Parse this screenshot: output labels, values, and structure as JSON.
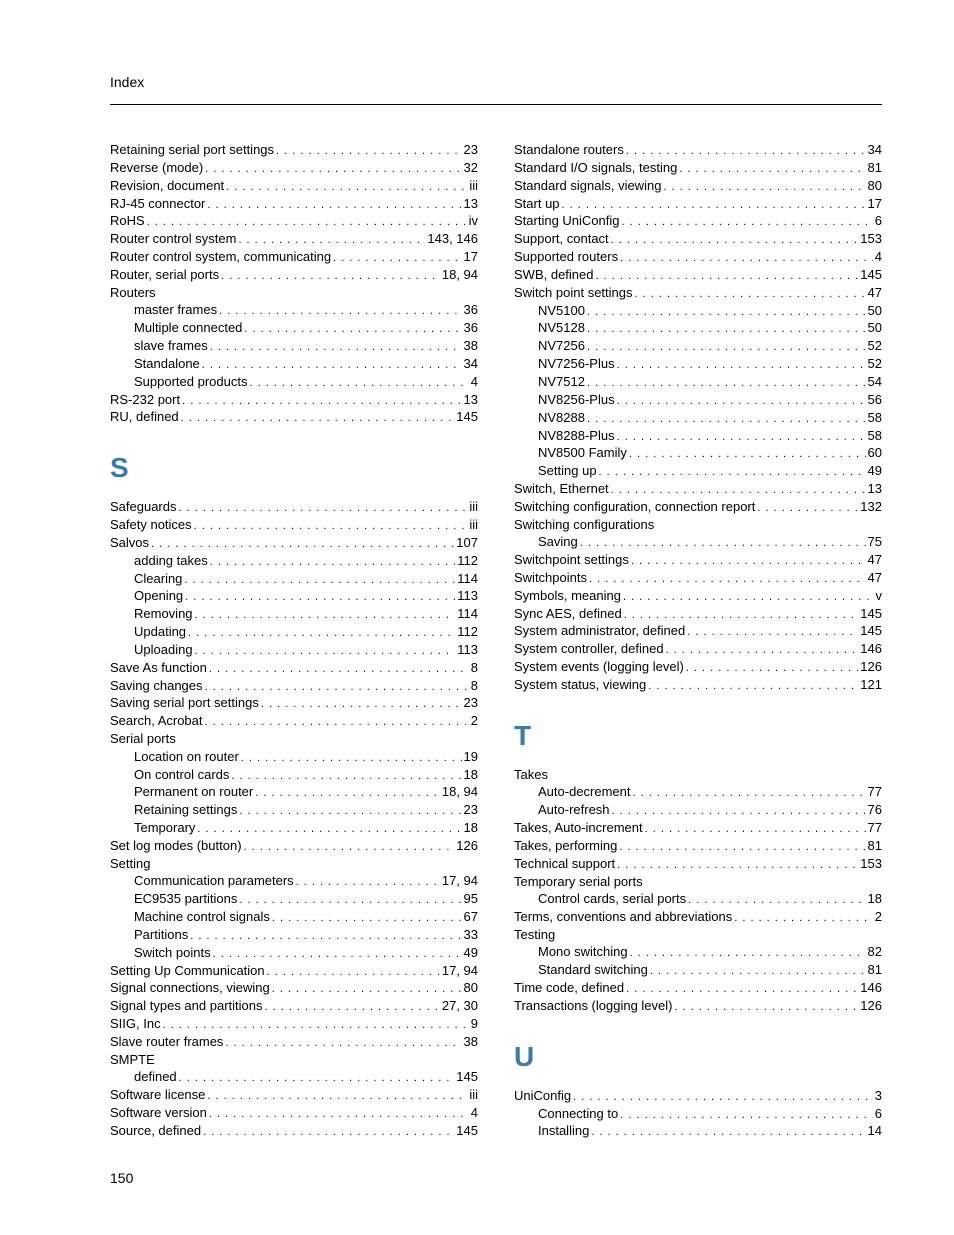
{
  "header": "Index",
  "page_number": "150",
  "colors": {
    "section_letter": "#3a7ca5",
    "text": "#000000",
    "background": "#ffffff",
    "rule": "#000000"
  },
  "typography": {
    "body_fontsize_pt": 10,
    "letter_fontsize_pt": 21,
    "letter_weight": "600"
  },
  "left": [
    {
      "t": "Retaining serial port settings",
      "p": "23"
    },
    {
      "t": "Reverse (mode)",
      "p": "32"
    },
    {
      "t": "Revision, document",
      "p": "iii"
    },
    {
      "t": "RJ-45 connector",
      "p": "13"
    },
    {
      "t": "RoHS",
      "p": "iv"
    },
    {
      "t": "Router control system",
      "p": "143, 146"
    },
    {
      "t": "Router control system, communicating",
      "p": "17"
    },
    {
      "t": "Router, serial ports",
      "p": "18, 94"
    },
    {
      "t": "Routers",
      "group": true
    },
    {
      "t": "master frames",
      "p": "36",
      "sub": true
    },
    {
      "t": "Multiple connected",
      "p": "36",
      "sub": true
    },
    {
      "t": "slave frames",
      "p": "38",
      "sub": true
    },
    {
      "t": "Standalone",
      "p": "34",
      "sub": true
    },
    {
      "t": "Supported products",
      "p": "4",
      "sub": true
    },
    {
      "t": "RS-232 port",
      "p": "13"
    },
    {
      "t": "RU, defined",
      "p": "145"
    },
    {
      "letter": "S"
    },
    {
      "t": "Safeguards",
      "p": "iii"
    },
    {
      "t": "Safety notices",
      "p": "iii"
    },
    {
      "t": "Salvos",
      "p": "107"
    },
    {
      "t": "adding takes",
      "p": "112",
      "sub": true
    },
    {
      "t": "Clearing",
      "p": "114",
      "sub": true
    },
    {
      "t": "Opening",
      "p": "113",
      "sub": true
    },
    {
      "t": "Removing",
      "p": "114",
      "sub": true
    },
    {
      "t": "Updating",
      "p": "112",
      "sub": true
    },
    {
      "t": "Uploading",
      "p": "113",
      "sub": true
    },
    {
      "t": "Save As function",
      "p": "8"
    },
    {
      "t": "Saving changes",
      "p": "8"
    },
    {
      "t": "Saving serial port settings",
      "p": "23"
    },
    {
      "t": "Search, Acrobat",
      "p": "2"
    },
    {
      "t": "Serial ports",
      "group": true
    },
    {
      "t": "Location on router",
      "p": "19",
      "sub": true
    },
    {
      "t": "On control cards",
      "p": "18",
      "sub": true
    },
    {
      "t": "Permanent on router",
      "p": "18, 94",
      "sub": true
    },
    {
      "t": "Retaining settings",
      "p": "23",
      "sub": true
    },
    {
      "t": "Temporary",
      "p": "18",
      "sub": true
    },
    {
      "t": "Set log modes (button)",
      "p": "126"
    },
    {
      "t": "Setting",
      "group": true
    },
    {
      "t": "Communication parameters",
      "p": "17, 94",
      "sub": true
    },
    {
      "t": "EC9535 partitions",
      "p": "95",
      "sub": true
    },
    {
      "t": "Machine control signals",
      "p": "67",
      "sub": true
    },
    {
      "t": "Partitions",
      "p": "33",
      "sub": true
    },
    {
      "t": "Switch points",
      "p": "49",
      "sub": true
    },
    {
      "t": "Setting Up Communication",
      "p": "17, 94"
    },
    {
      "t": "Signal connections, viewing",
      "p": "80"
    },
    {
      "t": "Signal types and partitions",
      "p": "27, 30"
    },
    {
      "t": "SIIG, Inc",
      "p": "9"
    },
    {
      "t": "Slave router frames",
      "p": "38"
    },
    {
      "t": "SMPTE",
      "group": true
    },
    {
      "t": "defined",
      "p": "145",
      "sub": true
    },
    {
      "t": "Software license",
      "p": "iii"
    },
    {
      "t": "Software version",
      "p": "4"
    },
    {
      "t": "Source, defined",
      "p": "145"
    }
  ],
  "right": [
    {
      "t": "Standalone routers",
      "p": "34"
    },
    {
      "t": "Standard I/O signals, testing",
      "p": "81"
    },
    {
      "t": "Standard signals, viewing",
      "p": "80"
    },
    {
      "t": "Start up",
      "p": "17"
    },
    {
      "t": "Starting UniConfig",
      "p": "6"
    },
    {
      "t": "Support, contact",
      "p": "153"
    },
    {
      "t": "Supported routers",
      "p": "4"
    },
    {
      "t": "SWB, defined",
      "p": "145"
    },
    {
      "t": "Switch point settings",
      "p": "47"
    },
    {
      "t": "NV5100",
      "p": "50",
      "sub": true
    },
    {
      "t": "NV5128",
      "p": "50",
      "sub": true
    },
    {
      "t": "NV7256",
      "p": "52",
      "sub": true
    },
    {
      "t": "NV7256-Plus",
      "p": "52",
      "sub": true
    },
    {
      "t": "NV7512",
      "p": "54",
      "sub": true
    },
    {
      "t": "NV8256-Plus",
      "p": "56",
      "sub": true
    },
    {
      "t": "NV8288",
      "p": "58",
      "sub": true
    },
    {
      "t": "NV8288-Plus",
      "p": "58",
      "sub": true
    },
    {
      "t": "NV8500 Family",
      "p": "60",
      "sub": true
    },
    {
      "t": "Setting up",
      "p": "49",
      "sub": true
    },
    {
      "t": "Switch, Ethernet",
      "p": "13"
    },
    {
      "t": "Switching configuration, connection report",
      "p": "132"
    },
    {
      "t": "Switching configurations",
      "group": true
    },
    {
      "t": "Saving",
      "p": "75",
      "sub": true
    },
    {
      "t": "Switchpoint settings",
      "p": "47"
    },
    {
      "t": "Switchpoints",
      "p": "47"
    },
    {
      "t": "Symbols, meaning",
      "p": "v"
    },
    {
      "t": "Sync AES, defined",
      "p": "145"
    },
    {
      "t": "System administrator, defined",
      "p": "145"
    },
    {
      "t": "System controller, defined",
      "p": "146"
    },
    {
      "t": "System events (logging level)",
      "p": "126"
    },
    {
      "t": "System status, viewing",
      "p": "121"
    },
    {
      "letter": "T"
    },
    {
      "t": "Takes",
      "group": true
    },
    {
      "t": "Auto-decrement",
      "p": "77",
      "sub": true
    },
    {
      "t": "Auto-refresh",
      "p": "76",
      "sub": true
    },
    {
      "t": "Takes, Auto-increment",
      "p": "77"
    },
    {
      "t": "Takes, performing",
      "p": "81"
    },
    {
      "t": "Technical support",
      "p": "153"
    },
    {
      "t": "Temporary serial ports",
      "group": true
    },
    {
      "t": "Control cards, serial ports",
      "p": "18",
      "sub": true
    },
    {
      "t": "Terms, conventions and abbreviations",
      "p": "2"
    },
    {
      "t": "Testing",
      "group": true
    },
    {
      "t": "Mono switching",
      "p": "82",
      "sub": true
    },
    {
      "t": "Standard switching",
      "p": "81",
      "sub": true
    },
    {
      "t": "Time code, defined",
      "p": "146"
    },
    {
      "t": "Transactions (logging level)",
      "p": "126"
    },
    {
      "letter": "U"
    },
    {
      "t": "UniConfig",
      "p": "3"
    },
    {
      "t": "Connecting to",
      "p": "6",
      "sub": true
    },
    {
      "t": "Installing",
      "p": "14",
      "sub": true
    }
  ]
}
